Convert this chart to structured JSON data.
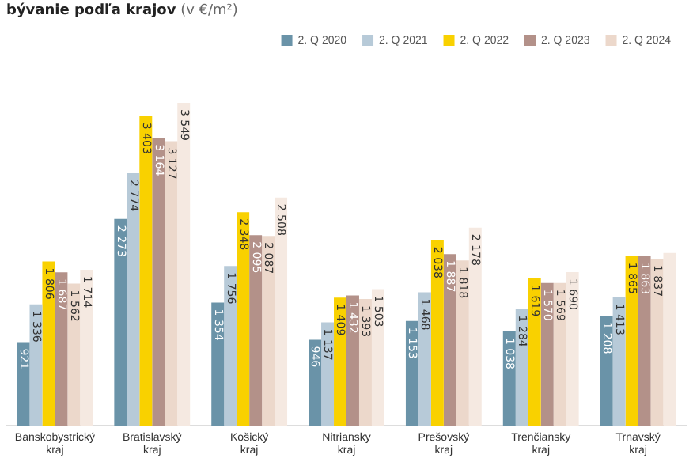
{
  "chart_data": {
    "type": "bar",
    "title": "bývanie podľa krajov",
    "subtitle": "(v €/m²)",
    "categories": [
      "Banskobystrický kraj",
      "Bratislavský kraj",
      "Košický kraj",
      "Nitriansky kraj",
      "Prešovský kraj",
      "Trenčiansky kraj",
      "Trnavský kraj"
    ],
    "series": [
      {
        "name": "2. Q 2020",
        "color": "#6a93a8",
        "values": [
          921,
          2273,
          1354,
          946,
          1153,
          1038,
          1208
        ],
        "value_labels": [
          "921",
          "2 273",
          "1 354",
          "946",
          "1 153",
          "1 038",
          "1 208"
        ]
      },
      {
        "name": "2. Q 2021",
        "color": "#b7cad8",
        "values": [
          1336,
          2774,
          1756,
          1137,
          1468,
          1284,
          1413
        ],
        "value_labels": [
          "1 336",
          "2 774",
          "1 756",
          "1 137",
          "1 468",
          "1 284",
          "1 413"
        ]
      },
      {
        "name": "2. Q 2022",
        "color": "#f9d100",
        "values": [
          1806,
          3403,
          2348,
          1409,
          2038,
          1619,
          1865
        ],
        "value_labels": [
          "1 806",
          "3 403",
          "2 348",
          "1 409",
          "2 038",
          "1 619",
          "1 865"
        ]
      },
      {
        "name": "2. Q 2023",
        "color": "#b39189",
        "values": [
          1687,
          3164,
          2095,
          1432,
          1887,
          1570,
          1863
        ],
        "value_labels": [
          "1 687",
          "3 164",
          "2 095",
          "1 432",
          "1 887",
          "1 570",
          "1 863"
        ]
      },
      {
        "name": "2. Q 2024",
        "color": "#ecd8cb",
        "values": [
          1562,
          3127,
          2087,
          1393,
          1818,
          1569,
          1837
        ],
        "value_labels": [
          "1 562",
          "3 127",
          "2 087",
          "1 393",
          "1 818",
          "1 569",
          "1 837"
        ]
      },
      {
        "color": "#f5e9e1",
        "values": [
          1714,
          3549,
          2508,
          1503,
          2178,
          1690,
          1900
        ],
        "value_labels": [
          "1 714",
          "3 549",
          "2 508",
          "1 503",
          "2 178",
          "1 690",
          null
        ]
      }
    ],
    "legend": "top right",
    "grid": false
  }
}
